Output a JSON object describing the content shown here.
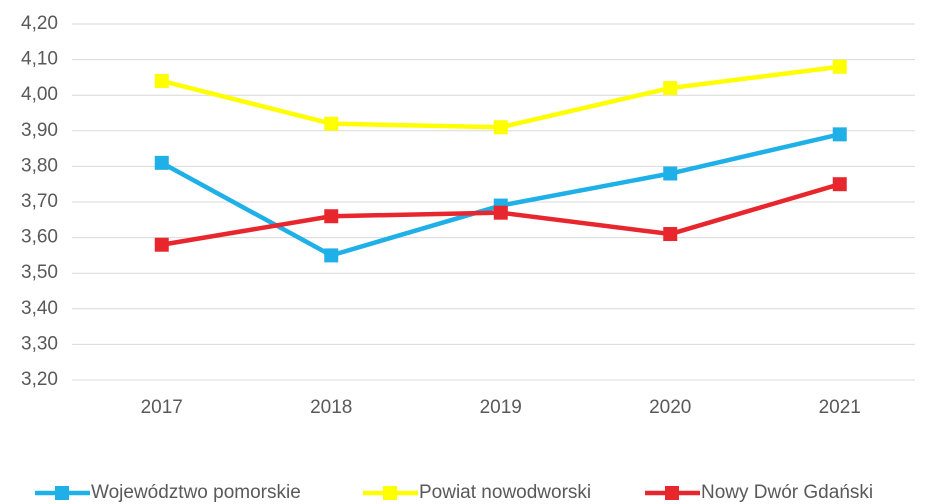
{
  "chart_data": {
    "type": "line",
    "categories": [
      "2017",
      "2018",
      "2019",
      "2020",
      "2021"
    ],
    "series": [
      {
        "name": "Województwo pomorskie",
        "color": "#1fb0e8",
        "values": [
          3.81,
          3.55,
          3.69,
          3.78,
          3.89
        ]
      },
      {
        "name": "Powiat nowodworski",
        "color": "#ffff00",
        "values": [
          4.04,
          3.92,
          3.91,
          4.02,
          4.08
        ]
      },
      {
        "name": "Nowy Dwór Gdański",
        "color": "#e8262d",
        "values": [
          3.58,
          3.66,
          3.67,
          3.61,
          3.75
        ]
      }
    ],
    "ylim": [
      3.2,
      4.2
    ],
    "yticks": [
      {
        "value": 3.2,
        "label": "3,20"
      },
      {
        "value": 3.3,
        "label": "3,30"
      },
      {
        "value": 3.4,
        "label": "3,40"
      },
      {
        "value": 3.5,
        "label": "3,50"
      },
      {
        "value": 3.6,
        "label": "3,60"
      },
      {
        "value": 3.7,
        "label": "3,70"
      },
      {
        "value": 3.8,
        "label": "3,80"
      },
      {
        "value": 3.9,
        "label": "3,90"
      },
      {
        "value": 4.0,
        "label": "4,00"
      },
      {
        "value": 4.1,
        "label": "4,10"
      },
      {
        "value": 4.2,
        "label": "4,20"
      }
    ],
    "grid": true,
    "legend": "bottom"
  }
}
